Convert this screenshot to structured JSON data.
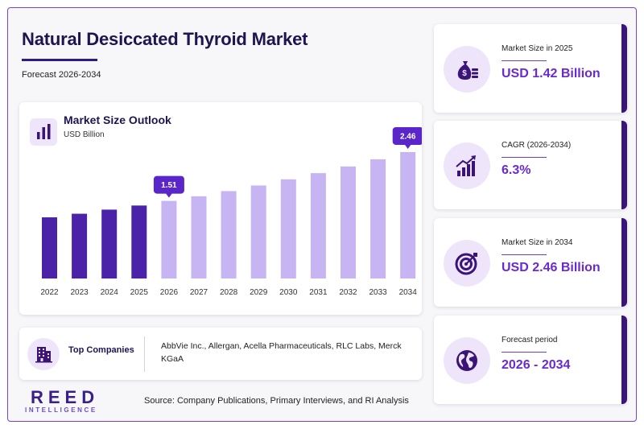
{
  "header": {
    "title": "Natural Desiccated Thyroid Market",
    "subtitle": "Forecast 2026-2034"
  },
  "chart_data": {
    "type": "bar",
    "title": "Market Size Outlook",
    "unit_label": "USD Billion",
    "categories": [
      "2022",
      "2023",
      "2024",
      "2025",
      "2026",
      "2027",
      "2028",
      "2029",
      "2030",
      "2031",
      "2032",
      "2033",
      "2034"
    ],
    "values": [
      1.19,
      1.26,
      1.34,
      1.42,
      1.51,
      1.6,
      1.7,
      1.81,
      1.93,
      2.05,
      2.18,
      2.32,
      2.46
    ],
    "highlighted_labels": [
      {
        "category": "2026",
        "label": "1.51"
      },
      {
        "category": "2034",
        "label": "2.46"
      }
    ],
    "historical_color": "#4a23a8",
    "forecast_color": "#c6b5f2",
    "label_color": "#5a25c9",
    "ylim": [
      0,
      2.6
    ],
    "grid": false
  },
  "companies": {
    "label": "Top Companies",
    "list": "AbbVie Inc., Allergan, Acella Pharmaceuticals, RLC Labs, Merck KGaA"
  },
  "stats": [
    {
      "label": "Market Size in 2025",
      "value": "USD 1.42 Billion",
      "icon": "money-bag-icon"
    },
    {
      "label": "CAGR (2026-2034)",
      "value": "6.3%",
      "icon": "growth-chart-icon"
    },
    {
      "label": "Market Size in 2034",
      "value": "USD 2.46 Billion",
      "icon": "target-icon"
    },
    {
      "label": "Forecast period",
      "value": "2026 - 2034",
      "icon": "globe-icon"
    }
  ],
  "footer": {
    "logo_main": "REED",
    "logo_sub": "INTELLIGENCE",
    "source": "Source: Company Publications, Primary Interviews, and RI Analysis"
  },
  "colors": {
    "accent": "#6a2ad0",
    "dark": "#3a1478",
    "icon_bg": "#efe5fb"
  }
}
